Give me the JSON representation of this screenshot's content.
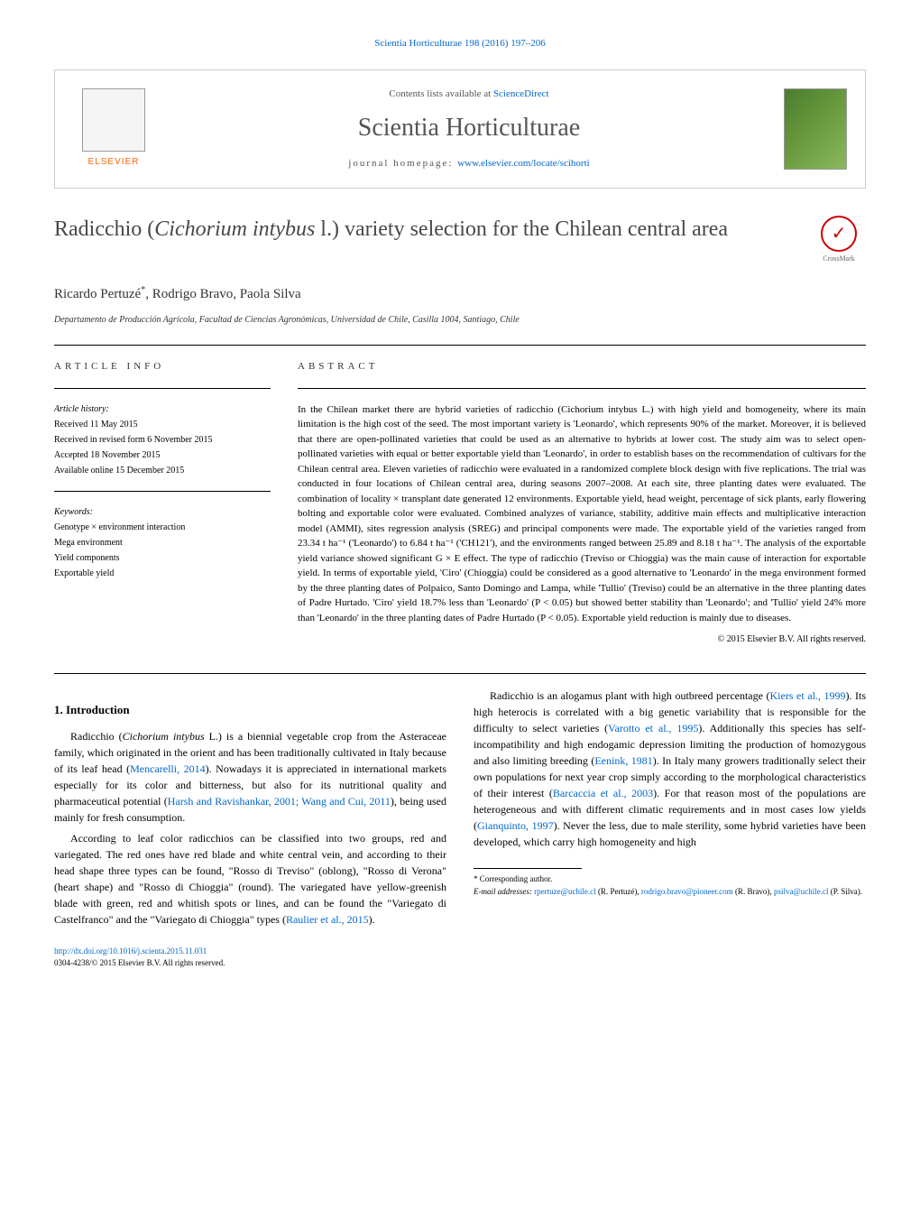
{
  "journal_header": "Scientia Horticulturae 198 (2016) 197–206",
  "banner": {
    "contents_prefix": "Contents lists available at ",
    "contents_link": "ScienceDirect",
    "journal_name": "Scientia Horticulturae",
    "homepage_prefix": "journal homepage: ",
    "homepage_link": "www.elsevier.com/locate/scihorti",
    "publisher": "ELSEVIER"
  },
  "article": {
    "title_prefix": "Radicchio (",
    "title_italic": "Cichorium intybus",
    "title_suffix": " l.) variety selection for the Chilean central area",
    "crossmark": "CrossMark",
    "authors_text": "Ricardo Pertuzé",
    "authors_mark": "*",
    "authors_rest": ", Rodrigo Bravo, Paola Silva",
    "affiliation": "Departamento de Producción Agrícola, Facultad de Ciencias Agronómicas, Universidad de Chile, Casilla 1004, Santiago, Chile"
  },
  "info": {
    "heading": "ARTICLE INFO",
    "history_label": "Article history:",
    "history": [
      "Received 11 May 2015",
      "Received in revised form 6 November 2015",
      "Accepted 18 November 2015",
      "Available online 15 December 2015"
    ],
    "keywords_label": "Keywords:",
    "keywords": [
      "Genotype × environment interaction",
      "Mega environment",
      "Yield components",
      "Exportable yield"
    ]
  },
  "abstract": {
    "heading": "ABSTRACT",
    "text": "In the Chilean market there are hybrid varieties of radicchio (Cichorium intybus L.) with high yield and homogeneity, where its main limitation is the high cost of the seed. The most important variety is 'Leonardo', which represents 90% of the market. Moreover, it is believed that there are open-pollinated varieties that could be used as an alternative to hybrids at lower cost. The study aim was to select open-pollinated varieties with equal or better exportable yield than 'Leonardo', in order to establish bases on the recommendation of cultivars for the Chilean central area. Eleven varieties of radicchio were evaluated in a randomized complete block design with five replications. The trial was conducted in four locations of Chilean central area, during seasons 2007–2008. At each site, three planting dates were evaluated. The combination of locality × transplant date generated 12 environments. Exportable yield, head weight, percentage of sick plants, early flowering bolting and exportable color were evaluated. Combined analyzes of variance, stability, additive main effects and multiplicative interaction model (AMMI), sites regression analysis (SREG) and principal components were made. The exportable yield of the varieties ranged from 23.34 t ha⁻¹ ('Leonardo') to 6.84 t ha⁻¹ ('CH121'), and the environments ranged between 25.89 and 8.18 t ha⁻¹. The analysis of the exportable yield variance showed significant G × E effect. The type of radicchio (Treviso or Chioggia) was the main cause of interaction for exportable yield. In terms of exportable yield, 'Ciro' (Chioggia) could be considered as a good alternative to 'Leonardo' in the mega environment formed by the three planting dates of Polpaico, Santo Domingo and Lampa, while 'Tullio' (Treviso) could be an alternative in the three planting dates of Padre Hurtado. 'Ciro' yield 18.7% less than 'Leonardo' (P < 0.05) but showed better stability than 'Leonardo'; and 'Tullio' yield 24% more than 'Leonardo' in the three planting dates of Padre Hurtado (P < 0.05). Exportable yield reduction is mainly due to diseases.",
    "copyright": "© 2015 Elsevier B.V. All rights reserved."
  },
  "body": {
    "heading": "1. Introduction",
    "para1_a": "Radicchio (",
    "para1_italic": "Cichorium intybus",
    "para1_b": " L.) is a biennial vegetable crop from the Asteraceae family, which originated in the orient and has been traditionally cultivated in Italy because of its leaf head (",
    "para1_cite1": "Mencarelli, 2014",
    "para1_c": "). Nowadays it is appreciated in international markets especially for its color and bitterness, but also for its nutritional quality and pharmaceutical potential (",
    "para1_cite2": "Harsh and Ravishankar, 2001; Wang and Cui, 2011",
    "para1_d": "), being used mainly for fresh consumption.",
    "para2": "According to leaf color radicchios can be classified into two groups, red and variegated. The red ones have red blade and white central vein, and according to their head shape three types can be found, \"Rosso di Treviso\" (oblong), \"Rosso di Verona\" (heart shape) and \"Rosso di Chioggia\" (round). The variegated have yellow-greenish blade with green, red and whitish spots or lines, and can be found the \"Variegato di Castelfranco\" and the \"Variegato di Chioggia\" types (",
    "para2_cite": "Raulier et al., 2015",
    "para2_end": ").",
    "para3_a": "Radicchio is an alogamus plant with high outbreed percentage (",
    "para3_cite1": "Kiers et al., 1999",
    "para3_b": "). Its high heterocis is correlated with a big genetic variability that is responsible for the difficulty to select varieties (",
    "para3_cite2": "Varotto et al., 1995",
    "para3_c": "). Additionally this species has self-incompatibility and high endogamic depression limiting the production of homozygous and also limiting breeding (",
    "para3_cite3": "Eenink, 1981",
    "para3_d": "). In Italy many growers traditionally select their own populations for next year crop simply according to the morphological characteristics of their interest (",
    "para3_cite4": "Barcaccia et al., 2003",
    "para3_e": "). For that reason most of the populations are heterogeneous and with different climatic requirements and in most cases low yields (",
    "para3_cite5": "Gianquinto, 1997",
    "para3_f": "). Never the less, due to male sterility, some hybrid varieties have been developed, which carry high homogeneity and high"
  },
  "footnote": {
    "corresp": "* Corresponding author.",
    "email_label": "E-mail addresses: ",
    "email1": "rpertuze@uchile.cl",
    "email1_who": " (R. Pertuzé), ",
    "email2": "rodrigo.bravo@pioneer.com",
    "email2_who": " (R. Bravo), ",
    "email3": "psilva@uchile.cl",
    "email3_who": " (P. Silva)."
  },
  "doi": {
    "link": "http://dx.doi.org/10.1016/j.scienta.2015.11.031",
    "issn": "0304-4238/© 2015 Elsevier B.V. All rights reserved."
  },
  "colors": {
    "link": "#0066cc",
    "text": "#000000",
    "heading_gray": "#484848",
    "orange": "#ff6600"
  }
}
